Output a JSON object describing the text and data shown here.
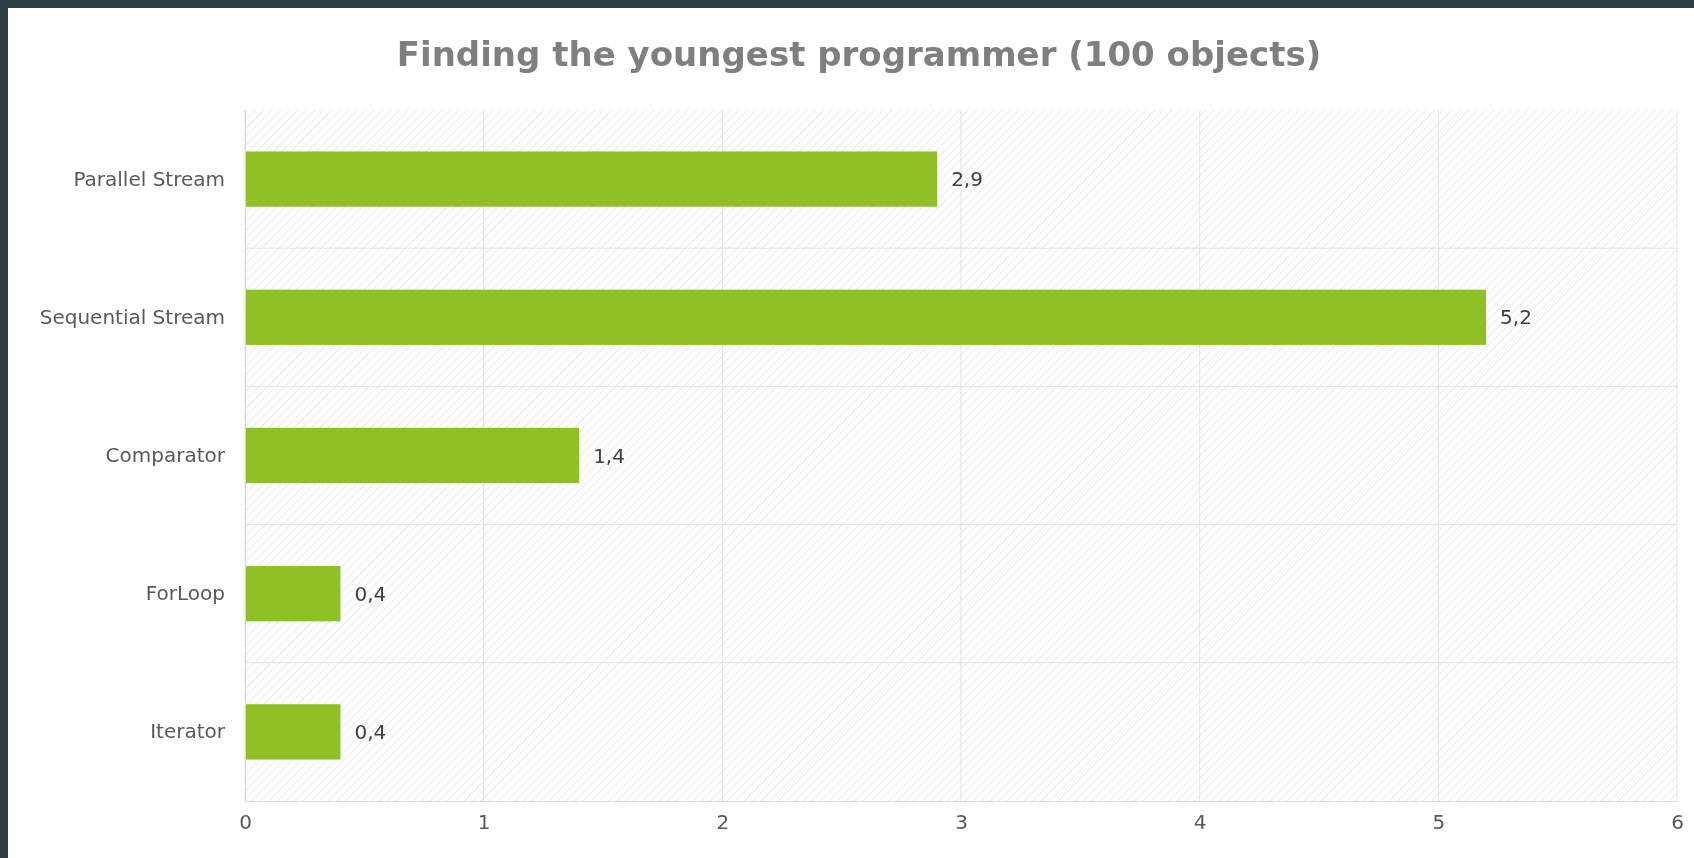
{
  "chart_data": {
    "type": "bar",
    "orientation": "horizontal",
    "title": "Finding the youngest programmer (100 objects)",
    "categories": [
      "Parallel Stream",
      "Sequential Stream",
      "Comparator",
      "ForLoop",
      "Iterator"
    ],
    "values": [
      2.9,
      5.2,
      1.4,
      0.4,
      0.4
    ],
    "value_labels": [
      "2,9",
      "5,2",
      "1,4",
      "0,4",
      "0,4"
    ],
    "color": "#8fc127",
    "xlim": [
      0,
      6
    ],
    "xticks": [
      0,
      1,
      2,
      3,
      4,
      5,
      6
    ],
    "grid": true
  }
}
